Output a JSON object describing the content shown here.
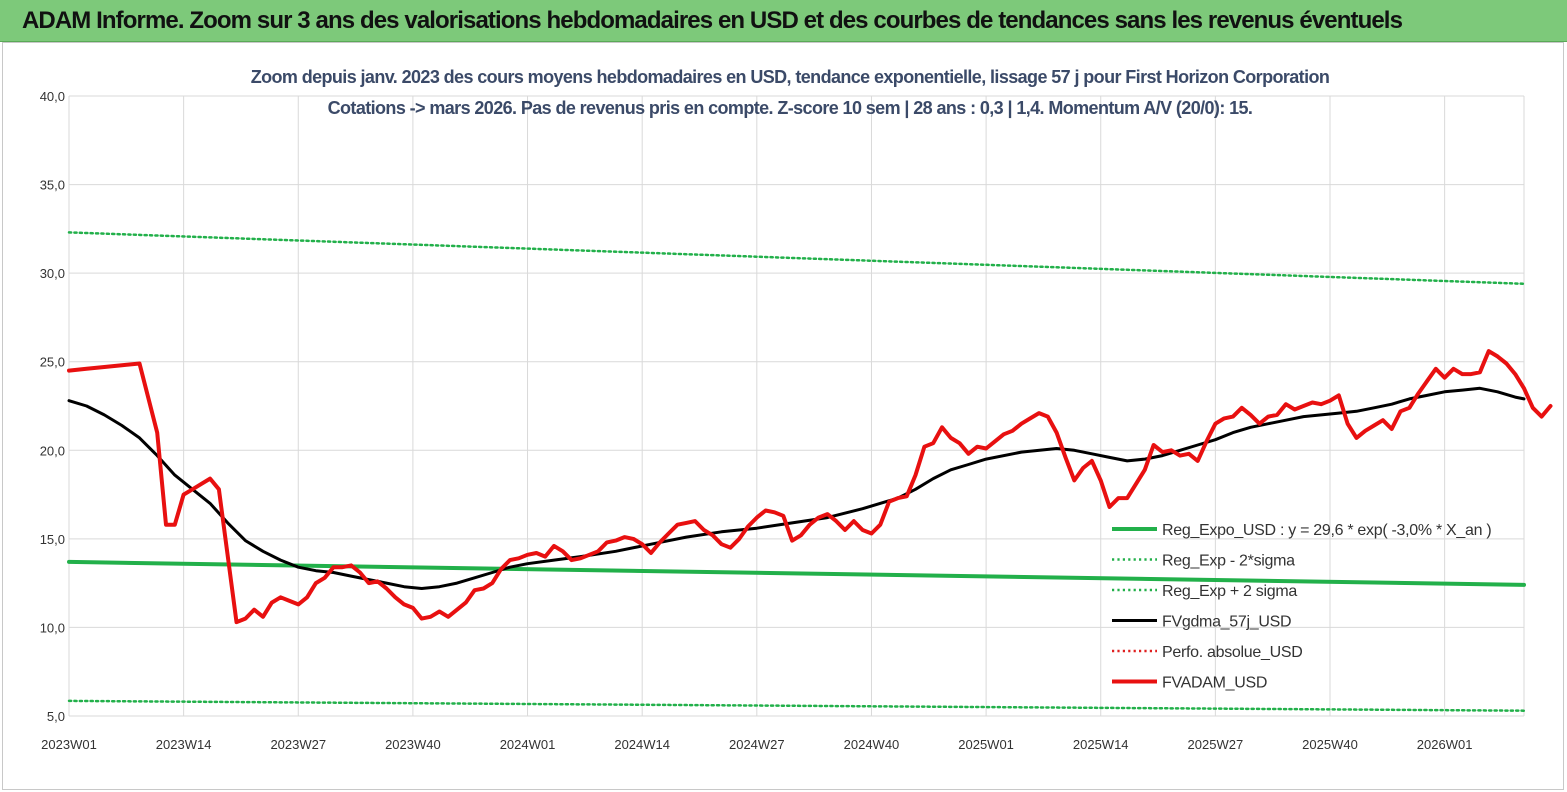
{
  "banner": {
    "title": "ADAM Informe. Zoom sur 3 ans des valorisations hebdomadaires en USD et des courbes de tendances sans les revenus éventuels"
  },
  "chart_data": {
    "type": "line",
    "title_line1": "Zoom depuis janv. 2023 des cours moyens hebdomadaires en USD, tendance exponentielle, lissage 57 j pour First Horizon Corporation",
    "title_line2": "Cotations -> mars 2026. Pas de revenus pris en compte. Z-score 10 sem | 28 ans : 0,3 | 1,4. Momentum A/V (20/0): 15.",
    "ylim": [
      5,
      40
    ],
    "y_ticks": [
      "5,0",
      "10,0",
      "15,0",
      "20,0",
      "25,0",
      "30,0",
      "35,0",
      "40,0"
    ],
    "x_range": [
      0,
      165
    ],
    "x_ticks": [
      {
        "label": "2023W01",
        "x": 0
      },
      {
        "label": "2023W14",
        "x": 13
      },
      {
        "label": "2023W27",
        "x": 26
      },
      {
        "label": "2023W40",
        "x": 39
      },
      {
        "label": "2024W01",
        "x": 52
      },
      {
        "label": "2024W14",
        "x": 65
      },
      {
        "label": "2024W27",
        "x": 78
      },
      {
        "label": "2024W40",
        "x": 91
      },
      {
        "label": "2025W01",
        "x": 104
      },
      {
        "label": "2025W14",
        "x": 117
      },
      {
        "label": "2025W27",
        "x": 130
      },
      {
        "label": "2025W40",
        "x": 143
      },
      {
        "label": "2026W01",
        "x": 156
      }
    ],
    "grid": true,
    "legend_position": "bottom-right",
    "series": [
      {
        "name": "Reg_Expo_USD : y = 29,6 * exp( -3,0% *  X_an )",
        "color": "#22b04a",
        "style": "solid-thick",
        "points": [
          [
            0,
            13.7
          ],
          [
            165,
            12.4
          ]
        ]
      },
      {
        "name": "Reg_Exp - 2*sigma",
        "color": "#22b04a",
        "style": "dotted",
        "points": [
          [
            0,
            5.85
          ],
          [
            165,
            5.3
          ]
        ]
      },
      {
        "name": "Reg_Exp + 2 sigma",
        "color": "#22b04a",
        "style": "dotted",
        "points": [
          [
            0,
            32.3
          ],
          [
            165,
            29.4
          ]
        ]
      },
      {
        "name": "FVgdma_57j_USD",
        "color": "#000000",
        "style": "solid",
        "points": [
          [
            0,
            22.8
          ],
          [
            2,
            22.5
          ],
          [
            4,
            22.0
          ],
          [
            6,
            21.4
          ],
          [
            8,
            20.7
          ],
          [
            10,
            19.7
          ],
          [
            12,
            18.6
          ],
          [
            14,
            17.8
          ],
          [
            16,
            17.0
          ],
          [
            18,
            15.9
          ],
          [
            20,
            14.9
          ],
          [
            22,
            14.3
          ],
          [
            24,
            13.8
          ],
          [
            26,
            13.4
          ],
          [
            28,
            13.2
          ],
          [
            30,
            13.1
          ],
          [
            32,
            12.9
          ],
          [
            34,
            12.7
          ],
          [
            36,
            12.5
          ],
          [
            38,
            12.3
          ],
          [
            40,
            12.2
          ],
          [
            42,
            12.3
          ],
          [
            44,
            12.5
          ],
          [
            46,
            12.8
          ],
          [
            48,
            13.1
          ],
          [
            50,
            13.4
          ],
          [
            52,
            13.6
          ],
          [
            55,
            13.8
          ],
          [
            58,
            14.0
          ],
          [
            62,
            14.3
          ],
          [
            66,
            14.7
          ],
          [
            70,
            15.1
          ],
          [
            74,
            15.4
          ],
          [
            78,
            15.6
          ],
          [
            82,
            15.9
          ],
          [
            86,
            16.2
          ],
          [
            90,
            16.7
          ],
          [
            94,
            17.3
          ],
          [
            96,
            17.8
          ],
          [
            98,
            18.4
          ],
          [
            100,
            18.9
          ],
          [
            102,
            19.2
          ],
          [
            104,
            19.5
          ],
          [
            108,
            19.9
          ],
          [
            112,
            20.1
          ],
          [
            114,
            20.0
          ],
          [
            116,
            19.8
          ],
          [
            118,
            19.6
          ],
          [
            120,
            19.4
          ],
          [
            122,
            19.5
          ],
          [
            124,
            19.7
          ],
          [
            126,
            20.0
          ],
          [
            128,
            20.3
          ],
          [
            130,
            20.6
          ],
          [
            132,
            21.0
          ],
          [
            134,
            21.3
          ],
          [
            136,
            21.5
          ],
          [
            138,
            21.7
          ],
          [
            140,
            21.9
          ],
          [
            142,
            22.0
          ],
          [
            144,
            22.1
          ],
          [
            146,
            22.2
          ],
          [
            148,
            22.4
          ],
          [
            150,
            22.6
          ],
          [
            152,
            22.9
          ],
          [
            154,
            23.1
          ],
          [
            156,
            23.3
          ],
          [
            158,
            23.4
          ],
          [
            160,
            23.5
          ],
          [
            162,
            23.3
          ],
          [
            164,
            23.0
          ],
          [
            165,
            22.9
          ]
        ]
      },
      {
        "name": "Perfo. absolue_USD",
        "color": "#e02020",
        "style": "dotted",
        "points": []
      },
      {
        "name": "FVADAM_USD",
        "color": "#e81010",
        "style": "solid-thick",
        "points": [
          [
            0,
            24.5
          ],
          [
            2,
            24.6
          ],
          [
            4,
            24.7
          ],
          [
            6,
            24.8
          ],
          [
            8,
            24.9
          ],
          [
            10,
            21.0
          ],
          [
            11,
            15.8
          ],
          [
            12,
            15.8
          ],
          [
            13,
            17.5
          ],
          [
            14,
            17.8
          ],
          [
            15,
            18.1
          ],
          [
            16,
            18.4
          ],
          [
            17,
            17.8
          ],
          [
            19,
            10.3
          ],
          [
            20,
            10.5
          ],
          [
            21,
            11.0
          ],
          [
            22,
            10.6
          ],
          [
            23,
            11.4
          ],
          [
            24,
            11.7
          ],
          [
            25,
            11.5
          ],
          [
            26,
            11.3
          ],
          [
            27,
            11.7
          ],
          [
            28,
            12.5
          ],
          [
            29,
            12.8
          ],
          [
            30,
            13.4
          ],
          [
            31,
            13.4
          ],
          [
            32,
            13.5
          ],
          [
            33,
            13.1
          ],
          [
            34,
            12.5
          ],
          [
            35,
            12.6
          ],
          [
            36,
            12.2
          ],
          [
            37,
            11.7
          ],
          [
            38,
            11.3
          ],
          [
            39,
            11.1
          ],
          [
            40,
            10.5
          ],
          [
            41,
            10.6
          ],
          [
            42,
            10.9
          ],
          [
            43,
            10.6
          ],
          [
            44,
            11.0
          ],
          [
            45,
            11.4
          ],
          [
            46,
            12.1
          ],
          [
            47,
            12.2
          ],
          [
            48,
            12.5
          ],
          [
            49,
            13.3
          ],
          [
            50,
            13.8
          ],
          [
            51,
            13.9
          ],
          [
            52,
            14.1
          ],
          [
            53,
            14.2
          ],
          [
            54,
            14.0
          ],
          [
            55,
            14.6
          ],
          [
            56,
            14.3
          ],
          [
            57,
            13.8
          ],
          [
            58,
            13.9
          ],
          [
            59,
            14.1
          ],
          [
            60,
            14.3
          ],
          [
            61,
            14.8
          ],
          [
            62,
            14.9
          ],
          [
            63,
            15.1
          ],
          [
            64,
            15.0
          ],
          [
            65,
            14.7
          ],
          [
            66,
            14.2
          ],
          [
            67,
            14.8
          ],
          [
            68,
            15.3
          ],
          [
            69,
            15.8
          ],
          [
            70,
            15.9
          ],
          [
            71,
            16.0
          ],
          [
            72,
            15.5
          ],
          [
            73,
            15.2
          ],
          [
            74,
            14.7
          ],
          [
            75,
            14.5
          ],
          [
            76,
            15.0
          ],
          [
            77,
            15.7
          ],
          [
            78,
            16.2
          ],
          [
            79,
            16.6
          ],
          [
            80,
            16.5
          ],
          [
            81,
            16.3
          ],
          [
            82,
            14.9
          ],
          [
            83,
            15.2
          ],
          [
            84,
            15.8
          ],
          [
            85,
            16.2
          ],
          [
            86,
            16.4
          ],
          [
            87,
            16.0
          ],
          [
            88,
            15.5
          ],
          [
            89,
            16.0
          ],
          [
            90,
            15.5
          ],
          [
            91,
            15.3
          ],
          [
            92,
            15.8
          ],
          [
            93,
            17.1
          ],
          [
            94,
            17.3
          ],
          [
            95,
            17.4
          ],
          [
            96,
            18.6
          ],
          [
            97,
            20.2
          ],
          [
            98,
            20.4
          ],
          [
            99,
            21.3
          ],
          [
            100,
            20.7
          ],
          [
            101,
            20.4
          ],
          [
            102,
            19.8
          ],
          [
            103,
            20.2
          ],
          [
            104,
            20.1
          ],
          [
            105,
            20.5
          ],
          [
            106,
            20.9
          ],
          [
            107,
            21.1
          ],
          [
            108,
            21.5
          ],
          [
            109,
            21.8
          ],
          [
            110,
            22.1
          ],
          [
            111,
            21.9
          ],
          [
            112,
            21.0
          ],
          [
            113,
            19.6
          ],
          [
            114,
            18.3
          ],
          [
            115,
            19.0
          ],
          [
            116,
            19.4
          ],
          [
            117,
            18.3
          ],
          [
            118,
            16.8
          ],
          [
            119,
            17.3
          ],
          [
            120,
            17.3
          ],
          [
            121,
            18.1
          ],
          [
            122,
            18.9
          ],
          [
            123,
            20.3
          ],
          [
            124,
            19.9
          ],
          [
            125,
            20.0
          ],
          [
            126,
            19.7
          ],
          [
            127,
            19.8
          ],
          [
            128,
            19.4
          ],
          [
            129,
            20.5
          ],
          [
            130,
            21.5
          ],
          [
            131,
            21.8
          ],
          [
            132,
            21.9
          ],
          [
            133,
            22.4
          ],
          [
            134,
            22.0
          ],
          [
            135,
            21.5
          ],
          [
            136,
            21.9
          ],
          [
            137,
            22.0
          ],
          [
            138,
            22.6
          ],
          [
            139,
            22.3
          ],
          [
            140,
            22.5
          ],
          [
            141,
            22.7
          ],
          [
            142,
            22.6
          ],
          [
            143,
            22.8
          ],
          [
            144,
            23.1
          ],
          [
            145,
            21.5
          ],
          [
            146,
            20.7
          ],
          [
            147,
            21.1
          ],
          [
            148,
            21.4
          ],
          [
            149,
            21.7
          ],
          [
            150,
            21.2
          ],
          [
            151,
            22.2
          ],
          [
            152,
            22.4
          ],
          [
            153,
            23.2
          ],
          [
            154,
            23.9
          ],
          [
            155,
            24.6
          ],
          [
            156,
            24.1
          ],
          [
            157,
            24.6
          ],
          [
            158,
            24.3
          ],
          [
            159,
            24.3
          ],
          [
            160,
            24.4
          ],
          [
            161,
            25.6
          ],
          [
            162,
            25.3
          ],
          [
            163,
            24.9
          ],
          [
            164,
            24.3
          ],
          [
            165,
            23.5
          ],
          [
            166,
            22.4
          ],
          [
            167,
            21.9
          ],
          [
            168,
            22.5
          ]
        ]
      }
    ]
  }
}
